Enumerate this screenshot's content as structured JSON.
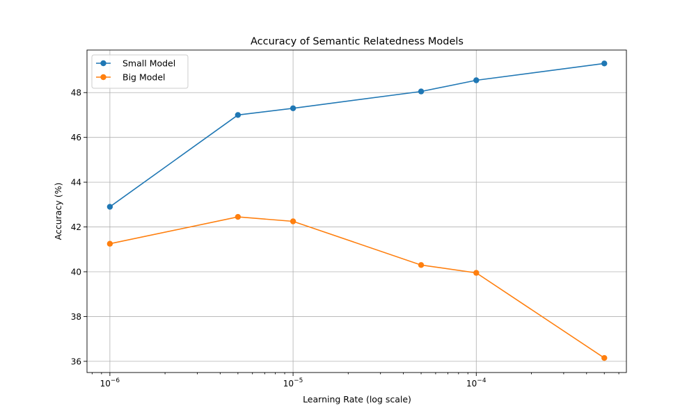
{
  "chart_data": {
    "type": "line",
    "title": "Accuracy of Semantic Relatedness Models",
    "xlabel": "Learning Rate (log scale)",
    "ylabel": "Accuracy (%)",
    "xscale": "log",
    "x": [
      1e-06,
      5e-06,
      1e-05,
      5e-05,
      0.0001,
      0.0005
    ],
    "xlim": [
      7.5e-07,
      0.00066
    ],
    "ylim": [
      35.5,
      49.9
    ],
    "xticks": [
      {
        "value": 1e-06,
        "base": "10",
        "exp": "−6"
      },
      {
        "value": 1e-05,
        "base": "10",
        "exp": "−5"
      },
      {
        "value": 0.0001,
        "base": "10",
        "exp": "−4"
      }
    ],
    "yticks": [
      "36",
      "38",
      "40",
      "42",
      "44",
      "46",
      "48"
    ],
    "grid": true,
    "legend_position": "upper-left",
    "series": [
      {
        "name": "Small Model",
        "color": "#1f77b4",
        "values": [
          42.9,
          47.0,
          47.3,
          48.05,
          48.55,
          49.3
        ]
      },
      {
        "name": "Big Model",
        "color": "#ff7f0e",
        "values": [
          41.25,
          42.45,
          42.25,
          40.3,
          39.95,
          36.15
        ]
      }
    ]
  }
}
